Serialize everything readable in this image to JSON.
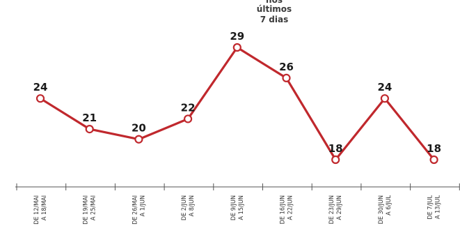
{
  "annotations": {
    "center_lines": [
      "nos",
      "últimos",
      "7 dias"
    ]
  },
  "chart_data": {
    "type": "line",
    "title": "",
    "xlabel": "",
    "ylabel": "",
    "ylim": [
      15,
      31
    ],
    "grid": false,
    "line_color": "#c0282d",
    "categories": [
      [
        "DE 12/MAI",
        "A 18/MAI"
      ],
      [
        "DE 19/MAI",
        "A 25/MAI"
      ],
      [
        "DE 26/MAI",
        "A 1/JUN"
      ],
      [
        "DE 2/JUN",
        "A 8/JUN"
      ],
      [
        "DE 9/JUN",
        "A 15/JUN"
      ],
      [
        "DE 16/JUN",
        "A 22/JUN"
      ],
      [
        "DE 23/JUN",
        "A 29/JUN"
      ],
      [
        "DE 30/JUN",
        "A 6/JUL"
      ],
      [
        "DE 7/JUL",
        "A 13/JUL"
      ]
    ],
    "series": [
      {
        "values": [
          24,
          21,
          20,
          22,
          29,
          26,
          18,
          24,
          18
        ]
      }
    ]
  }
}
